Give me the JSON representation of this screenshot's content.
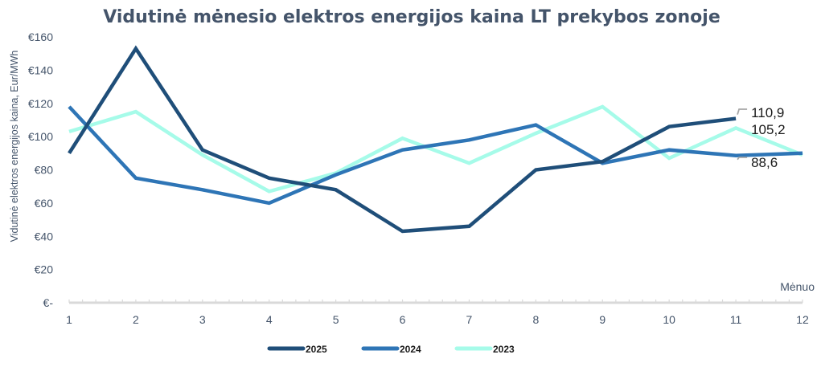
{
  "chart_data": {
    "type": "line",
    "title": "Vidutinė mėnesio elektros energijos kaina LT prekybos zonoje",
    "xlabel": "Mėnuo",
    "ylabel": "Vidutinė elektros energijos kaina, Eur/MWh",
    "x": [
      1,
      2,
      3,
      4,
      5,
      6,
      7,
      8,
      9,
      10,
      11,
      12
    ],
    "x_tick_labels": [
      "1",
      "2",
      "3",
      "4",
      "5",
      "6",
      "7",
      "8",
      "9",
      "10",
      "11",
      "12"
    ],
    "ylim": [
      0,
      160
    ],
    "y_ticks": [
      0,
      20,
      40,
      60,
      80,
      100,
      120,
      140,
      160
    ],
    "y_tick_labels": [
      "€-",
      "€20",
      "€40",
      "€60",
      "€80",
      "€100",
      "€120",
      "€140",
      "€160"
    ],
    "grid": false,
    "legend_position": "bottom",
    "series": [
      {
        "name": "2025",
        "color": "#1f4e79",
        "values": [
          90,
          153,
          92,
          75,
          68,
          43,
          46,
          80,
          85,
          106,
          110.9,
          null
        ],
        "end_label": "110,9"
      },
      {
        "name": "2024",
        "color": "#2e75b6",
        "values": [
          118,
          75,
          68,
          60,
          77,
          92,
          98,
          107,
          84,
          92,
          88.6,
          90
        ],
        "end_label": "88,6"
      },
      {
        "name": "2023",
        "color": "#a6fbe9",
        "values": [
          103,
          115,
          89,
          67,
          78,
          99,
          84,
          102,
          118,
          87,
          105.2,
          89
        ],
        "end_label": "105,2"
      }
    ],
    "annotations": [
      {
        "series": "2025",
        "month": 11,
        "text": "110,9"
      },
      {
        "series": "2023",
        "month": 11,
        "text": "105,2"
      },
      {
        "series": "2024",
        "month": 11,
        "text": "88,6"
      }
    ]
  }
}
